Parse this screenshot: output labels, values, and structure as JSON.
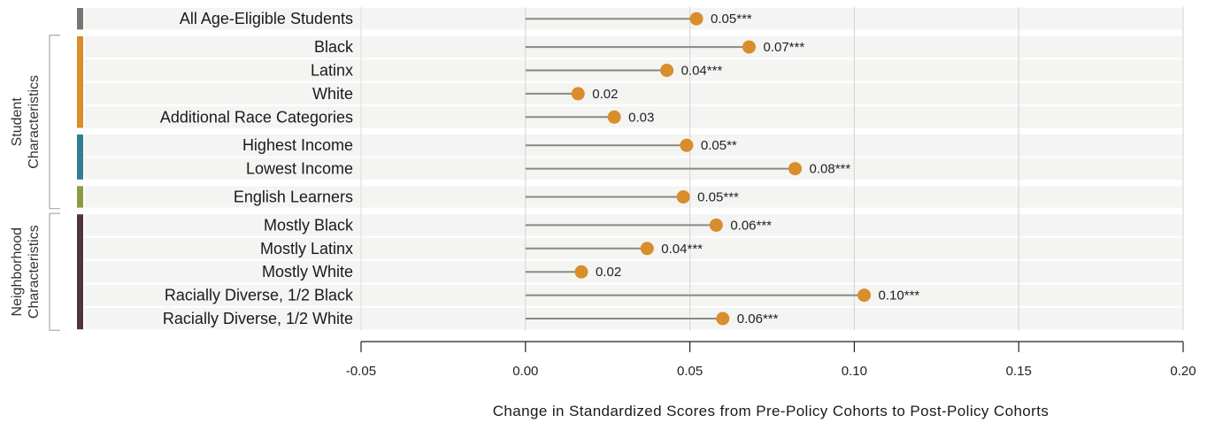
{
  "chart_data": {
    "type": "lollipop",
    "xlabel": "Change in Standardized Scores from Pre-Policy Cohorts to Post-Policy Cohorts",
    "xlim": [
      -0.05,
      0.2
    ],
    "xticks": [
      -0.05,
      0.0,
      0.05,
      0.1,
      0.15,
      0.2
    ],
    "xtick_labels": [
      "-0.05",
      "0.00",
      "0.05",
      "0.10",
      "0.15",
      "0.20"
    ],
    "grid": "vertical",
    "marker_color": "#D98D2B",
    "groups": [
      {
        "name": "",
        "color": "#7A756E",
        "rows": [
          {
            "label": "All Age-Eligible Students",
            "value": 0.052,
            "text": "0.05***"
          }
        ]
      },
      {
        "name": "",
        "color": "#D98D2B",
        "rows": [
          {
            "label": "Black",
            "value": 0.068,
            "text": "0.07***"
          },
          {
            "label": "Latinx",
            "value": 0.043,
            "text": "0.04***"
          },
          {
            "label": "White",
            "value": 0.016,
            "text": "0.02"
          },
          {
            "label": "Additional Race Categories",
            "value": 0.027,
            "text": "0.03"
          }
        ]
      },
      {
        "name": "",
        "color": "#2E7F95",
        "rows": [
          {
            "label": "Highest Income",
            "value": 0.049,
            "text": "0.05**"
          },
          {
            "label": "Lowest Income",
            "value": 0.082,
            "text": "0.08***"
          }
        ]
      },
      {
        "name": "",
        "color": "#8B9B45",
        "rows": [
          {
            "label": "English Learners",
            "value": 0.048,
            "text": "0.05***"
          }
        ]
      },
      {
        "name": "",
        "color": "#4E3540",
        "rows": [
          {
            "label": "Mostly Black",
            "value": 0.058,
            "text": "0.06***"
          },
          {
            "label": "Mostly Latinx",
            "value": 0.037,
            "text": "0.04***"
          },
          {
            "label": "Mostly White",
            "value": 0.017,
            "text": "0.02"
          },
          {
            "label": "Racially Diverse, 1/2 Black",
            "value": 0.103,
            "text": "0.10***"
          },
          {
            "label": "Racially Diverse, 1/2 White",
            "value": 0.06,
            "text": "0.06***"
          }
        ]
      }
    ],
    "brackets": [
      {
        "label_lines": [
          "Student",
          "Characteristics"
        ]
      },
      {
        "label_lines": [
          "Neighborhood",
          "Characteristics"
        ]
      }
    ]
  }
}
